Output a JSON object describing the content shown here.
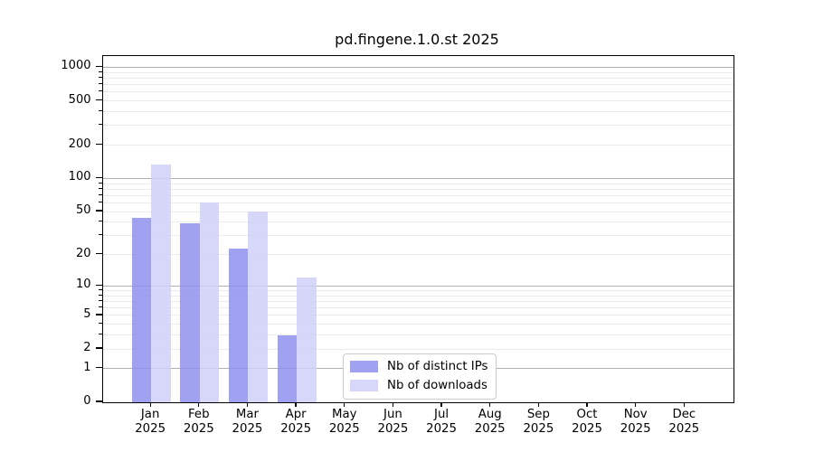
{
  "title": "pd.fingene.1.0.st 2025",
  "chart_data": {
    "type": "bar",
    "title": "pd.fingene.1.0.st 2025",
    "xlabel": "",
    "ylabel": "",
    "yscale": "log1p",
    "ylim": [
      0,
      1260
    ],
    "y_ticks": [
      1000,
      500,
      200,
      100,
      50,
      20,
      10,
      5,
      2,
      1,
      0
    ],
    "grid": "horizontal major and minor gridlines",
    "legend_position": "inside lower center-right",
    "categories": [
      "Jan",
      "Feb",
      "Mar",
      "Apr",
      "May",
      "Jun",
      "Jul",
      "Aug",
      "Sep",
      "Oct",
      "Nov",
      "Dec"
    ],
    "category_year": "2025",
    "series": [
      {
        "name": "Nb of distinct IPs",
        "color": "#9090ee",
        "values": [
          44,
          39,
          23,
          3,
          0,
          0,
          0,
          0,
          0,
          0,
          0,
          0
        ]
      },
      {
        "name": "Nb of downloads",
        "color": "#d0d0f8",
        "values": [
          134,
          61,
          50,
          12,
          0,
          0,
          0,
          0,
          0,
          0,
          0,
          0
        ]
      }
    ]
  },
  "colors": {
    "major_grid": "#b0b0b0",
    "minor_grid": "#ebebeb",
    "spine": "#000000",
    "background": "#ffffff"
  }
}
